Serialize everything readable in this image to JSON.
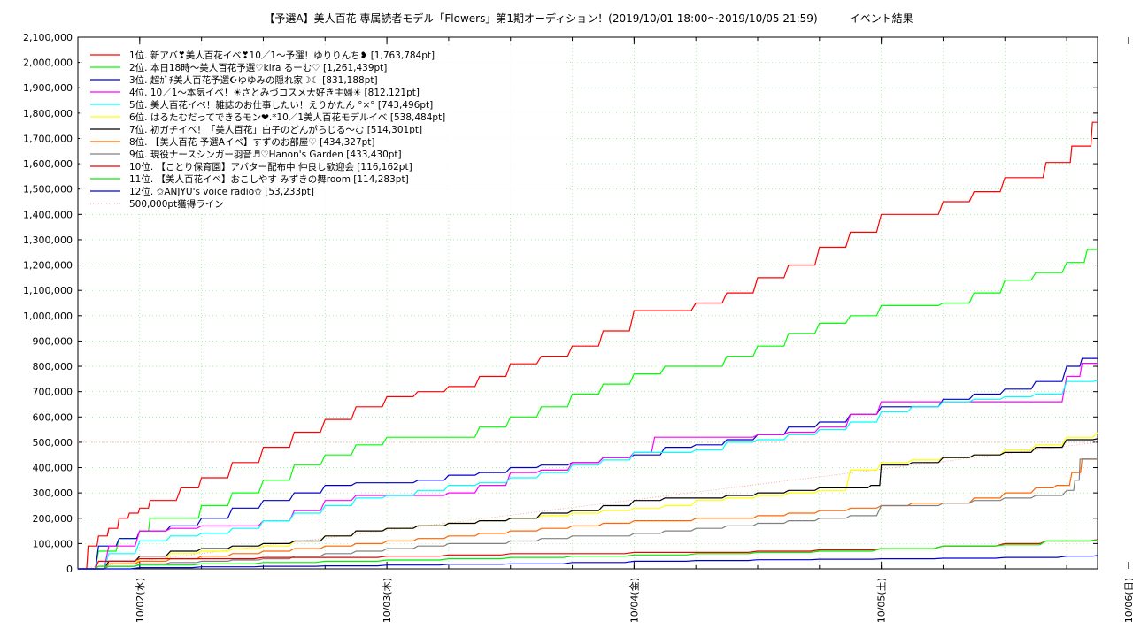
{
  "chart_data": {
    "type": "line",
    "title": "【予選A】美人百花 専属読者モデル「Flowers」第1期オーディション！(2019/10/01 18:00〜2019/10/05 21:59)　　　イベント結果",
    "xlabel": "",
    "ylabel": "",
    "x_range_hours": [
      18,
      117
    ],
    "ylim": [
      0,
      2100000
    ],
    "y_ticks": [
      0,
      100000,
      200000,
      300000,
      400000,
      500000,
      600000,
      700000,
      800000,
      900000,
      1000000,
      1100000,
      1200000,
      1300000,
      1400000,
      1500000,
      1600000,
      1700000,
      1800000,
      1900000,
      2000000,
      2100000
    ],
    "y_tick_labels": [
      "0",
      "100,000",
      "200,000",
      "300,000",
      "400,000",
      "500,000",
      "600,000",
      "700,000",
      "800,000",
      "900,000",
      "1,000,000",
      "1,100,000",
      "1,200,000",
      "1,300,000",
      "1,400,000",
      "1,500,000",
      "1,600,000",
      "1,700,000",
      "1,800,000",
      "1,900,000",
      "2,000,000",
      "2,100,000"
    ],
    "x_ticks_hours": [
      24,
      48,
      72,
      96,
      120
    ],
    "x_tick_labels": [
      "10/02(水)",
      "10/03(木)",
      "10/04(金)",
      "10/05(土)",
      "10/06(日)"
    ],
    "grid": true,
    "legend_position": "top-left",
    "series": [
      {
        "name": "1位. 新アバ❣美人百花イベ❣10／1〜予選！ゆりりんち❥ [1,763,784pt]",
        "color": "#ff0000",
        "x": [
          18,
          19,
          20,
          21,
          22,
          23,
          24,
          25,
          28,
          30,
          33,
          36,
          39,
          42,
          45,
          48,
          51,
          54,
          57,
          60,
          63,
          66,
          69,
          72,
          75,
          78,
          81,
          84,
          87,
          90,
          93,
          96,
          99,
          102,
          105,
          108,
          110,
          112,
          113.5,
          114.5,
          115.5,
          116.5,
          117
        ],
        "y": [
          0,
          90000,
          130000,
          160000,
          200000,
          220000,
          240000,
          270000,
          320000,
          360000,
          420000,
          480000,
          540000,
          590000,
          640000,
          680000,
          700000,
          720000,
          760000,
          810000,
          840000,
          880000,
          940000,
          1020000,
          1020000,
          1050000,
          1090000,
          1150000,
          1200000,
          1270000,
          1330000,
          1400000,
          1400000,
          1450000,
          1490000,
          1545000,
          1545000,
          1605000,
          1605000,
          1670000,
          1670000,
          1763784,
          1763784
        ]
      },
      {
        "name": "2位. 本日18時〜美人百花予選♡kira るーむ♡ [1,261,439pt]",
        "color": "#00ff00",
        "x": [
          18,
          20,
          22,
          24,
          25,
          28,
          30,
          33,
          36,
          39,
          42,
          45,
          48,
          51,
          54,
          57,
          60,
          63,
          66,
          69,
          72,
          75,
          78,
          81,
          84,
          87,
          90,
          93,
          96,
          99,
          102,
          105,
          108,
          111,
          114,
          116,
          117
        ],
        "y": [
          0,
          70000,
          120000,
          150000,
          200000,
          200000,
          250000,
          300000,
          350000,
          410000,
          450000,
          490000,
          520000,
          520000,
          520000,
          560000,
          600000,
          640000,
          690000,
          730000,
          770000,
          800000,
          800000,
          840000,
          880000,
          930000,
          970000,
          1000000,
          1040000,
          1040000,
          1050000,
          1090000,
          1140000,
          1170000,
          1210000,
          1261439,
          1261439
        ]
      },
      {
        "name": "3位. 超ｶﾞﾁ美人百花予選☪ゆゆみの隠れ家☽☾ [831,188pt]",
        "color": "#0000cc",
        "x": [
          18,
          20,
          22,
          24,
          27,
          30,
          33,
          36,
          39,
          42,
          45,
          48,
          51,
          54,
          57,
          60,
          63,
          66,
          69,
          72,
          75,
          78,
          81,
          84,
          87,
          90,
          93,
          96,
          99,
          102,
          105,
          108,
          111,
          114,
          115.5,
          117
        ],
        "y": [
          0,
          90000,
          120000,
          150000,
          170000,
          200000,
          240000,
          270000,
          300000,
          330000,
          340000,
          340000,
          350000,
          370000,
          380000,
          400000,
          410000,
          420000,
          440000,
          450000,
          480000,
          490000,
          510000,
          530000,
          560000,
          580000,
          610000,
          640000,
          640000,
          670000,
          690000,
          710000,
          740000,
          800000,
          831188,
          831188
        ]
      },
      {
        "name": "4位. 10／1〜本気イベ！☀さとみづコスメ大好き主婦☀ [812,121pt]",
        "color": "#ff00ff",
        "x": [
          18,
          21,
          24,
          27,
          30,
          33,
          36,
          39,
          42,
          45,
          48,
          51,
          54,
          57,
          60,
          63,
          66,
          69,
          72,
          74,
          78,
          81,
          84,
          87,
          90,
          93,
          96,
          99,
          102,
          105,
          108,
          111,
          114,
          115.5,
          117
        ],
        "y": [
          0,
          90000,
          150000,
          160000,
          170000,
          170000,
          190000,
          230000,
          270000,
          290000,
          290000,
          290000,
          300000,
          330000,
          380000,
          390000,
          420000,
          440000,
          460000,
          520000,
          520000,
          520000,
          530000,
          540000,
          560000,
          610000,
          660000,
          660000,
          660000,
          660000,
          660000,
          660000,
          760000,
          812121,
          812121
        ]
      },
      {
        "name": "5位. 美人百花イベ！雑誌のお仕事したい！えりかたん °×° [743,496pt]",
        "color": "#00ffff",
        "x": [
          18,
          21,
          24,
          27,
          30,
          33,
          36,
          39,
          42,
          45,
          48,
          51,
          54,
          57,
          60,
          63,
          66,
          69,
          72,
          75,
          78,
          81,
          84,
          87,
          90,
          93,
          96,
          99,
          102,
          105,
          108,
          111,
          114,
          117
        ],
        "y": [
          0,
          60000,
          110000,
          130000,
          140000,
          160000,
          190000,
          220000,
          250000,
          280000,
          290000,
          310000,
          330000,
          340000,
          360000,
          380000,
          410000,
          430000,
          460000,
          460000,
          470000,
          500000,
          510000,
          530000,
          550000,
          580000,
          620000,
          640000,
          660000,
          670000,
          680000,
          690000,
          740000,
          743496
        ]
      },
      {
        "name": "6位. はるたむだってできるモン❤.*10／1美人百花モデルイベ [538,484pt]",
        "color": "#ffff00",
        "x": [
          18,
          21,
          24,
          27,
          30,
          33,
          36,
          39,
          42,
          45,
          48,
          51,
          54,
          57,
          60,
          63,
          66,
          69,
          72,
          75,
          78,
          81,
          84,
          87,
          90,
          93,
          96,
          99,
          102,
          105,
          108,
          111,
          114,
          117
        ],
        "y": [
          0,
          20000,
          40000,
          60000,
          70000,
          80000,
          90000,
          110000,
          130000,
          150000,
          160000,
          170000,
          180000,
          190000,
          200000,
          210000,
          220000,
          230000,
          240000,
          250000,
          270000,
          280000,
          290000,
          300000,
          310000,
          390000,
          420000,
          430000,
          440000,
          450000,
          470000,
          490000,
          520000,
          538484
        ]
      },
      {
        "name": "7位. 初ガチイベ！「美人百花」白子のどんがらじる〜む [514,301pt]",
        "color": "#000000",
        "x": [
          18,
          21,
          24,
          27,
          30,
          33,
          36,
          39,
          42,
          45,
          48,
          51,
          54,
          57,
          60,
          63,
          66,
          69,
          72,
          75,
          78,
          81,
          84,
          87,
          90,
          93,
          95,
          96,
          99,
          102,
          105,
          108,
          111,
          114,
          117
        ],
        "y": [
          0,
          30000,
          50000,
          70000,
          80000,
          90000,
          100000,
          110000,
          130000,
          150000,
          160000,
          170000,
          180000,
          190000,
          200000,
          220000,
          230000,
          250000,
          270000,
          280000,
          280000,
          290000,
          300000,
          310000,
          320000,
          320000,
          330000,
          410000,
          420000,
          440000,
          450000,
          460000,
          480000,
          510000,
          514301
        ]
      },
      {
        "name": "8位. 【美人百花 予選Aイベ】すずのお部屋♡ [434,327pt]",
        "color": "#ff6600",
        "x": [
          18,
          21,
          24,
          27,
          30,
          33,
          36,
          39,
          42,
          45,
          48,
          51,
          54,
          57,
          60,
          63,
          66,
          69,
          72,
          75,
          78,
          81,
          84,
          87,
          90,
          93,
          96,
          99,
          102,
          105,
          108,
          111,
          113,
          114.5,
          115.5,
          117
        ],
        "y": [
          0,
          20000,
          30000,
          40000,
          50000,
          60000,
          70000,
          80000,
          90000,
          100000,
          110000,
          120000,
          130000,
          140000,
          150000,
          160000,
          170000,
          180000,
          190000,
          190000,
          200000,
          200000,
          210000,
          220000,
          230000,
          240000,
          250000,
          260000,
          260000,
          280000,
          300000,
          320000,
          330000,
          380000,
          434327,
          434327
        ]
      },
      {
        "name": "9位. 現役ナースシンガー羽音♬♡Hanon's Garden [433,430pt]",
        "color": "#808080",
        "x": [
          18,
          21,
          24,
          27,
          30,
          33,
          36,
          39,
          42,
          45,
          48,
          51,
          54,
          57,
          60,
          63,
          66,
          69,
          72,
          75,
          78,
          81,
          84,
          87,
          90,
          93,
          96,
          99,
          102,
          105,
          108,
          111,
          114,
          114.8,
          115.3,
          117
        ],
        "y": [
          0,
          10000,
          20000,
          25000,
          30000,
          35000,
          40000,
          50000,
          60000,
          70000,
          80000,
          90000,
          100000,
          100000,
          110000,
          120000,
          130000,
          130000,
          140000,
          150000,
          160000,
          170000,
          180000,
          190000,
          200000,
          210000,
          250000,
          250000,
          260000,
          270000,
          280000,
          290000,
          310000,
          350000,
          433430,
          433430
        ]
      },
      {
        "name": "10位. 【ことり保育園】アバター配布中 仲良し歓迎会 [116,162pt]",
        "color": "#ee0000",
        "x": [
          18,
          20,
          24,
          30,
          36,
          42,
          48,
          54,
          60,
          66,
          72,
          78,
          84,
          90,
          96,
          102,
          108,
          112,
          117
        ],
        "y": [
          0,
          30000,
          40000,
          40000,
          45000,
          45000,
          50000,
          55000,
          60000,
          60000,
          65000,
          65000,
          70000,
          75000,
          80000,
          90000,
          100000,
          110000,
          116162
        ]
      },
      {
        "name": "11位. 【美人百花イベ】おこしやす みずきの舞room [114,283pt]",
        "color": "#00ee00",
        "x": [
          18,
          20,
          24,
          30,
          36,
          42,
          48,
          54,
          60,
          66,
          72,
          78,
          84,
          90,
          96,
          102,
          108,
          112,
          117
        ],
        "y": [
          0,
          10000,
          15000,
          20000,
          25000,
          30000,
          35000,
          40000,
          45000,
          50000,
          55000,
          60000,
          65000,
          70000,
          80000,
          90000,
          95000,
          110000,
          114283
        ]
      },
      {
        "name": "12位. ✩ANJYU's voice radio✩ [53,233pt]",
        "color": "#0000dd",
        "x": [
          18,
          24,
          30,
          36,
          42,
          48,
          54,
          60,
          66,
          72,
          78,
          84,
          90,
          96,
          102,
          108,
          114,
          117
        ],
        "y": [
          0,
          5000,
          8000,
          10000,
          12000,
          15000,
          18000,
          20000,
          25000,
          30000,
          33000,
          36000,
          38000,
          40000,
          42000,
          45000,
          50000,
          53233
        ]
      }
    ],
    "reference_line": {
      "name": "500,000pt獲得ライン",
      "color": "#ff9999",
      "y_end": 500000
    }
  }
}
